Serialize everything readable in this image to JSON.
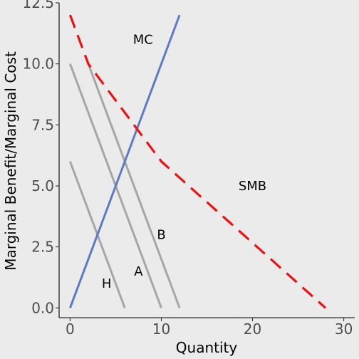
{
  "chart_data": {
    "type": "line",
    "title": "",
    "xlabel": "Quantity",
    "ylabel": "Marginal Benefit/Marginal Cost",
    "xlim": [
      -1.2,
      31.2
    ],
    "ylim": [
      -0.4,
      12.5
    ],
    "x_ticks": [
      0,
      10,
      20,
      30
    ],
    "y_ticks": [
      0,
      2.5,
      5,
      7.5,
      10,
      12.5
    ],
    "x_tick_labels": [
      "0",
      "10",
      "20",
      "30"
    ],
    "y_tick_labels": [
      "0.0",
      "2.5",
      "5.0",
      "7.5",
      "10.0",
      "12.5"
    ],
    "grid": false,
    "background": "#ebebeb",
    "series": [
      {
        "id": "H",
        "color": "#a6a6a6",
        "dash": "solid",
        "points": [
          [
            0,
            6
          ],
          [
            6,
            0
          ]
        ]
      },
      {
        "id": "A",
        "color": "#a6a6a6",
        "dash": "solid",
        "points": [
          [
            0,
            10
          ],
          [
            10,
            0
          ]
        ]
      },
      {
        "id": "B",
        "color": "#a6a6a6",
        "dash": "solid",
        "points": [
          [
            2,
            10
          ],
          [
            12,
            0
          ]
        ]
      },
      {
        "id": "MC",
        "color": "#5b7cc4",
        "dash": "solid",
        "points": [
          [
            0,
            0
          ],
          [
            12,
            12
          ]
        ]
      },
      {
        "id": "SMB",
        "color": "#ee1111",
        "dash": "dashed",
        "points": [
          [
            0,
            12
          ],
          [
            2,
            10
          ],
          [
            10,
            6
          ],
          [
            28,
            0
          ]
        ]
      }
    ],
    "annotations": [
      {
        "text": "MC",
        "x": 8,
        "y": 11
      },
      {
        "text": "SMB",
        "x": 20,
        "y": 5
      },
      {
        "text": "B",
        "x": 10,
        "y": 3
      },
      {
        "text": "A",
        "x": 7.5,
        "y": 1.5
      },
      {
        "text": "H",
        "x": 4,
        "y": 1
      }
    ]
  }
}
